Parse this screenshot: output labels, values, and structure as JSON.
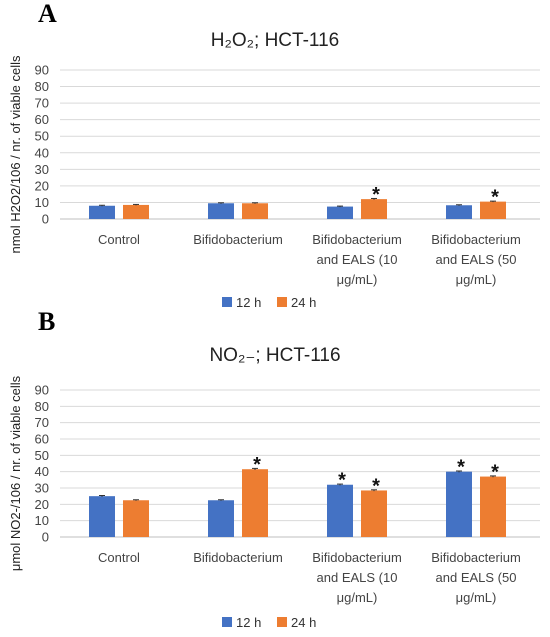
{
  "chart_data": [
    {
      "type": "bar",
      "panel_label": "A",
      "title": "H₂O₂; HCT-116",
      "ylabel": "nmol H2O2/106  / nr. of viable cells",
      "ylim": [
        0,
        90
      ],
      "yticks": [
        0,
        10,
        20,
        30,
        40,
        50,
        60,
        70,
        80,
        90
      ],
      "grid": true,
      "legend_position": "bottom",
      "categories": [
        "Control",
        "Bifidobacterium",
        "Bifidobacterium and EALS (10 μg/mL)",
        "Bifidobacterium and EALS (50 μg/mL)"
      ],
      "category_lines": [
        [
          "Control"
        ],
        [
          "Bifidobacterium"
        ],
        [
          "Bifidobacterium",
          "and EALS (10",
          "μg/mL)"
        ],
        [
          "Bifidobacterium",
          "and EALS (50",
          "μg/mL)"
        ]
      ],
      "series": [
        {
          "name": "12 h",
          "color": "#4472C4",
          "values": [
            8,
            9.5,
            7.5,
            8.3
          ],
          "errors": [
            0.3,
            0.3,
            0.3,
            0.3
          ],
          "significant": [
            false,
            false,
            false,
            false
          ]
        },
        {
          "name": "24 h",
          "color": "#ED7D31",
          "values": [
            8.5,
            9.5,
            12,
            10.5
          ],
          "errors": [
            0.3,
            0.3,
            0.4,
            0.3
          ],
          "significant": [
            false,
            false,
            true,
            true
          ]
        }
      ],
      "significance_marker": "*"
    },
    {
      "type": "bar",
      "panel_label": "B",
      "title": "NO₂₋; HCT-116",
      "ylabel": "μmol NO2-/106  / nr. of viable cells",
      "ylim": [
        0,
        90
      ],
      "yticks": [
        0,
        10,
        20,
        30,
        40,
        50,
        60,
        70,
        80,
        90
      ],
      "grid": true,
      "legend_position": "bottom",
      "categories": [
        "Control",
        "Bifidobacterium",
        "Bifidobacterium and EALS (10 μg/mL)",
        "Bifidobacterium and EALS (50 μg/mL)"
      ],
      "category_lines": [
        [
          "Control"
        ],
        [
          "Bifidobacterium"
        ],
        [
          "Bifidobacterium",
          "and EALS (10",
          "μg/mL)"
        ],
        [
          "Bifidobacterium",
          "and EALS (50",
          "μg/mL)"
        ]
      ],
      "series": [
        {
          "name": "12 h",
          "color": "#4472C4",
          "values": [
            25,
            22.5,
            32,
            40
          ],
          "errors": [
            0.4,
            0.3,
            0.4,
            0.4
          ],
          "significant": [
            false,
            false,
            true,
            true
          ]
        },
        {
          "name": "24 h",
          "color": "#ED7D31",
          "values": [
            22.5,
            41.5,
            28.5,
            37
          ],
          "errors": [
            0.3,
            0.5,
            0.4,
            0.4
          ],
          "significant": [
            false,
            true,
            true,
            true
          ]
        }
      ],
      "significance_marker": "*"
    }
  ]
}
